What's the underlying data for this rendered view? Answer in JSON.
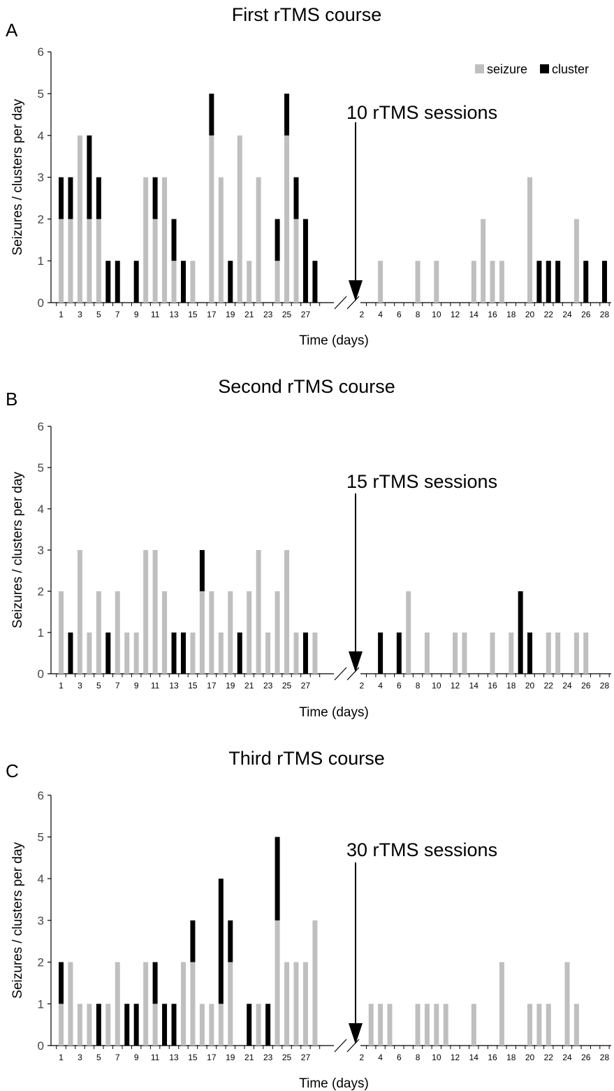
{
  "legend": {
    "seizure_label": "seizure",
    "cluster_label": "cluster",
    "seizure_color": "#bfbfbf",
    "cluster_color": "#000000",
    "placement": "top-right"
  },
  "chart_data": [
    {
      "type": "bar",
      "panel_label": "A",
      "title": "First rTMS course",
      "xlabel": "Time (days)",
      "ylabel": "Seizures / clusters per day",
      "ylim": [
        0,
        6
      ],
      "yticks": [
        "0",
        "1",
        "2",
        "3",
        "4",
        "5",
        "6"
      ],
      "stacked": true,
      "annotation": "10 rTMS sessions",
      "grid": false,
      "pre": {
        "days": [
          1,
          2,
          3,
          4,
          5,
          6,
          7,
          8,
          9,
          10,
          11,
          12,
          13,
          14,
          15,
          16,
          17,
          18,
          19,
          20,
          21,
          22,
          23,
          24,
          25,
          26,
          27,
          28
        ],
        "tick_labels": [
          "1",
          "3",
          "5",
          "7",
          "9",
          "11",
          "13",
          "15",
          "17",
          "19",
          "21",
          "23",
          "25",
          "27"
        ],
        "seizure": [
          2,
          2,
          4,
          2,
          2,
          0,
          0,
          0,
          0,
          3,
          2,
          3,
          1,
          0,
          1,
          0,
          4,
          3,
          0,
          4,
          1,
          3,
          0,
          1,
          4,
          2,
          0,
          0
        ],
        "cluster": [
          1,
          1,
          0,
          2,
          1,
          1,
          1,
          0,
          1,
          0,
          1,
          0,
          1,
          1,
          0,
          0,
          1,
          0,
          1,
          0,
          0,
          0,
          0,
          1,
          1,
          1,
          2,
          1
        ]
      },
      "post": {
        "days": [
          1,
          2,
          3,
          4,
          5,
          6,
          7,
          8,
          9,
          10,
          11,
          12,
          13,
          14,
          15,
          16,
          17,
          18,
          19,
          20,
          21,
          22,
          23,
          24,
          25,
          26,
          27,
          28
        ],
        "tick_labels": [
          "2",
          "4",
          "6",
          "8",
          "10",
          "12",
          "14",
          "16",
          "18",
          "20",
          "22",
          "24",
          "26",
          "28"
        ],
        "seizure": [
          0,
          0,
          0,
          1,
          0,
          0,
          0,
          1,
          0,
          1,
          0,
          0,
          0,
          1,
          2,
          1,
          1,
          0,
          0,
          3,
          0,
          0,
          0,
          0,
          2,
          0,
          0,
          0
        ],
        "cluster": [
          0,
          0,
          0,
          0,
          0,
          0,
          0,
          0,
          0,
          0,
          0,
          0,
          0,
          0,
          0,
          0,
          0,
          0,
          0,
          0,
          1,
          1,
          1,
          0,
          0,
          1,
          0,
          1
        ]
      }
    },
    {
      "type": "bar",
      "panel_label": "B",
      "title": "Second rTMS course",
      "xlabel": "Time (days)",
      "ylabel": "Seizures / clusters per day",
      "ylim": [
        0,
        6
      ],
      "yticks": [
        "0",
        "1",
        "2",
        "3",
        "4",
        "5",
        "6"
      ],
      "stacked": true,
      "annotation": "15 rTMS sessions",
      "grid": false,
      "pre": {
        "days": [
          1,
          2,
          3,
          4,
          5,
          6,
          7,
          8,
          9,
          10,
          11,
          12,
          13,
          14,
          15,
          16,
          17,
          18,
          19,
          20,
          21,
          22,
          23,
          24,
          25,
          26,
          27,
          28
        ],
        "tick_labels": [
          "1",
          "3",
          "5",
          "7",
          "9",
          "11",
          "13",
          "15",
          "17",
          "19",
          "21",
          "23",
          "25",
          "27"
        ],
        "seizure": [
          2,
          0,
          3,
          1,
          2,
          0,
          2,
          1,
          1,
          3,
          3,
          2,
          0,
          0,
          1,
          2,
          2,
          1,
          2,
          0,
          2,
          3,
          1,
          2,
          3,
          1,
          0,
          1
        ],
        "cluster": [
          0,
          1,
          0,
          0,
          0,
          1,
          0,
          0,
          0,
          0,
          0,
          0,
          1,
          1,
          0,
          1,
          0,
          0,
          0,
          1,
          0,
          0,
          0,
          0,
          0,
          0,
          1,
          0
        ]
      },
      "post": {
        "days": [
          1,
          2,
          3,
          4,
          5,
          6,
          7,
          8,
          9,
          10,
          11,
          12,
          13,
          14,
          15,
          16,
          17,
          18,
          19,
          20,
          21,
          22,
          23,
          24,
          25,
          26,
          27,
          28
        ],
        "tick_labels": [
          "2",
          "4",
          "6",
          "8",
          "10",
          "12",
          "14",
          "16",
          "18",
          "20",
          "22",
          "24",
          "26",
          "28"
        ],
        "seizure": [
          0,
          0,
          0,
          0,
          0,
          0,
          2,
          0,
          1,
          0,
          0,
          1,
          1,
          0,
          0,
          1,
          0,
          1,
          0,
          0,
          0,
          1,
          1,
          0,
          1,
          1,
          0,
          0
        ],
        "cluster": [
          0,
          0,
          0,
          1,
          0,
          1,
          0,
          0,
          0,
          0,
          0,
          0,
          0,
          0,
          0,
          0,
          0,
          0,
          2,
          1,
          0,
          0,
          0,
          0,
          0,
          0,
          0,
          0
        ]
      }
    },
    {
      "type": "bar",
      "panel_label": "C",
      "title": "Third rTMS course",
      "xlabel": "Time (days)",
      "ylabel": "Seizures / clusters per day",
      "ylim": [
        0,
        6
      ],
      "yticks": [
        "0",
        "1",
        "2",
        "3",
        "4",
        "5",
        "6"
      ],
      "stacked": true,
      "annotation": "30 rTMS sessions",
      "grid": false,
      "pre": {
        "days": [
          1,
          2,
          3,
          4,
          5,
          6,
          7,
          8,
          9,
          10,
          11,
          12,
          13,
          14,
          15,
          16,
          17,
          18,
          19,
          20,
          21,
          22,
          23,
          24,
          25,
          26,
          27,
          28
        ],
        "tick_labels": [
          "1",
          "3",
          "5",
          "7",
          "9",
          "11",
          "13",
          "15",
          "17",
          "19",
          "21",
          "23",
          "25",
          "27"
        ],
        "seizure": [
          1,
          2,
          1,
          1,
          0,
          1,
          2,
          0,
          0,
          2,
          1,
          0,
          0,
          2,
          2,
          1,
          1,
          1,
          2,
          0,
          0,
          1,
          0,
          3,
          2,
          2,
          2,
          3
        ],
        "cluster": [
          1,
          0,
          0,
          0,
          1,
          0,
          0,
          1,
          1,
          0,
          1,
          1,
          1,
          0,
          1,
          0,
          0,
          3,
          1,
          0,
          1,
          0,
          1,
          2,
          0,
          0,
          0,
          0
        ]
      },
      "post": {
        "days": [
          1,
          2,
          3,
          4,
          5,
          6,
          7,
          8,
          9,
          10,
          11,
          12,
          13,
          14,
          15,
          16,
          17,
          18,
          19,
          20,
          21,
          22,
          23,
          24,
          25,
          26,
          27,
          28
        ],
        "tick_labels": [
          "2",
          "4",
          "6",
          "8",
          "10",
          "12",
          "14",
          "16",
          "18",
          "20",
          "22",
          "24",
          "26",
          "28"
        ],
        "seizure": [
          0,
          0,
          1,
          1,
          1,
          0,
          0,
          1,
          1,
          1,
          1,
          0,
          0,
          1,
          0,
          0,
          2,
          0,
          0,
          1,
          1,
          1,
          0,
          2,
          1,
          0,
          0,
          0
        ],
        "cluster": [
          0,
          0,
          0,
          0,
          0,
          0,
          0,
          0,
          0,
          0,
          0,
          0,
          0,
          0,
          0,
          0,
          0,
          0,
          0,
          0,
          0,
          0,
          0,
          0,
          0,
          0,
          0,
          0
        ]
      }
    }
  ]
}
